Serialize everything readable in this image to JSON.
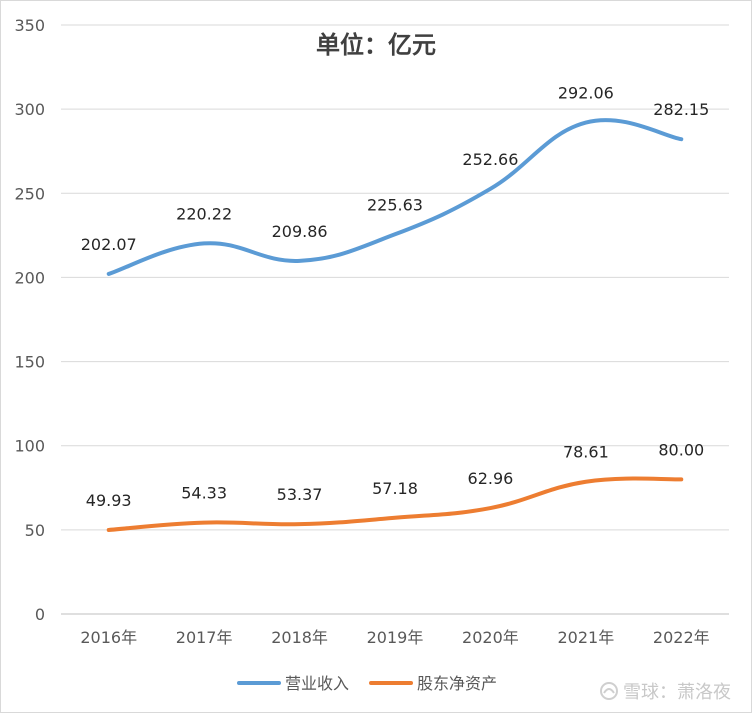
{
  "chart_data": {
    "type": "line",
    "title": "单位：亿元",
    "categories": [
      "2016年",
      "2017年",
      "2018年",
      "2019年",
      "2020年",
      "2021年",
      "2022年"
    ],
    "series": [
      {
        "name": "营业收入",
        "color": "#5b9bd5",
        "values": [
          202.07,
          220.22,
          209.86,
          225.63,
          252.66,
          292.06,
          282.15
        ],
        "labels": [
          "202.07",
          "220.22",
          "209.86",
          "225.63",
          "252.66",
          "292.06",
          "282.15"
        ]
      },
      {
        "name": "股东净资产",
        "color": "#ed7d31",
        "values": [
          49.93,
          54.33,
          53.37,
          57.18,
          62.96,
          78.61,
          80.0
        ],
        "labels": [
          "49.93",
          "54.33",
          "53.37",
          "57.18",
          "62.96",
          "78.61",
          "80.00"
        ]
      }
    ],
    "ylim": [
      0,
      350
    ],
    "yticks": [
      "0",
      "50",
      "100",
      "150",
      "200",
      "250",
      "300",
      "350"
    ],
    "smooth": true,
    "grid": true,
    "legend": "bottom"
  },
  "watermark": {
    "icon": "snowball-icon",
    "text": "雪球：萧洛夜"
  }
}
